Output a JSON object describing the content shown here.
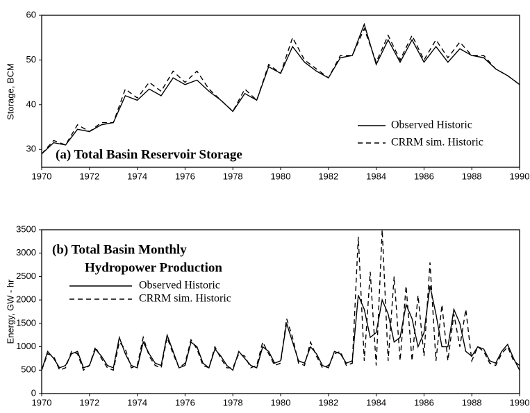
{
  "chart_data": [
    {
      "type": "line",
      "title": [
        "(a) Total Basin Reservoir Storage"
      ],
      "ylabel": "Storage, BCM",
      "xlim": [
        1970,
        1990
      ],
      "xticks": [
        1970,
        1972,
        1974,
        1976,
        1978,
        1980,
        1982,
        1984,
        1986,
        1988,
        1990
      ],
      "ylim": [
        26,
        60
      ],
      "yticks": [
        30,
        40,
        50,
        60
      ],
      "x": [
        1970,
        1970.5,
        1971,
        1971.5,
        1972,
        1972.5,
        1973,
        1973.5,
        1974,
        1974.5,
        1975,
        1975.5,
        1976,
        1976.5,
        1977,
        1977.5,
        1978,
        1978.5,
        1979,
        1979.5,
        1980,
        1980.5,
        1981,
        1981.5,
        1982,
        1982.5,
        1983,
        1983.5,
        1984,
        1984.5,
        1985,
        1985.5,
        1986,
        1986.5,
        1987,
        1987.5,
        1988,
        1988.5,
        1989,
        1989.5,
        1990
      ],
      "series": [
        {
          "name": "Observed Historic",
          "color": "#000000",
          "style": "solid",
          "values": [
            29,
            31.5,
            31,
            34.5,
            34,
            35.5,
            36,
            42,
            41,
            43.5,
            42,
            46,
            44.5,
            45.5,
            43,
            41,
            38.5,
            42.5,
            41,
            48.5,
            47,
            53,
            49.5,
            47.5,
            46,
            50.5,
            51,
            58,
            49,
            54.5,
            49.5,
            54.5,
            49.5,
            53,
            49.5,
            52.5,
            51,
            50.5,
            48,
            46.5,
            44.5
          ]
        },
        {
          "name": "CRRM sim. Historic",
          "color": "#000000",
          "style": "dashed",
          "values": [
            29,
            32,
            31,
            35.5,
            34,
            36,
            36,
            43.5,
            41.5,
            45,
            43,
            47.5,
            45,
            47.5,
            43.5,
            41,
            38.5,
            43.5,
            41,
            49,
            47,
            55,
            50,
            48,
            46,
            51,
            51,
            57,
            49.5,
            55.5,
            50,
            55.5,
            50,
            54.5,
            50.5,
            54,
            51,
            51,
            48,
            46.5,
            44.5
          ]
        }
      ]
    },
    {
      "type": "line",
      "title": [
        "(b) Total Basin Monthly",
        "Hydropower Production"
      ],
      "ylabel": "Energy, GW - hr",
      "xlim": [
        1970,
        1990
      ],
      "xticks": [
        1970,
        1972,
        1974,
        1976,
        1978,
        1980,
        1982,
        1984,
        1986,
        1988,
        1990
      ],
      "ylim": [
        0,
        3500
      ],
      "yticks": [
        0,
        500,
        1000,
        1500,
        2000,
        2500,
        3000,
        3500
      ],
      "x": [
        1970,
        1970.25,
        1970.5,
        1970.75,
        1971,
        1971.25,
        1971.5,
        1971.75,
        1972,
        1972.25,
        1972.5,
        1972.75,
        1973,
        1973.25,
        1973.5,
        1973.75,
        1974,
        1974.25,
        1974.5,
        1974.75,
        1975,
        1975.25,
        1975.5,
        1975.75,
        1976,
        1976.25,
        1976.5,
        1976.75,
        1977,
        1977.25,
        1977.5,
        1977.75,
        1978,
        1978.25,
        1978.5,
        1978.75,
        1979,
        1979.25,
        1979.5,
        1979.75,
        1980,
        1980.25,
        1980.5,
        1980.75,
        1981,
        1981.25,
        1981.5,
        1981.75,
        1982,
        1982.25,
        1982.5,
        1982.75,
        1983,
        1983.25,
        1983.5,
        1983.75,
        1984,
        1984.25,
        1984.5,
        1984.75,
        1985,
        1985.25,
        1985.5,
        1985.75,
        1986,
        1986.25,
        1986.5,
        1986.75,
        1987,
        1987.25,
        1987.5,
        1987.75,
        1988,
        1988.25,
        1988.5,
        1988.75,
        1989,
        1989.25,
        1989.5,
        1989.75,
        1990
      ],
      "series": [
        {
          "name": "Observed Historic",
          "color": "#000000",
          "style": "solid",
          "values": [
            500,
            900,
            750,
            550,
            600,
            850,
            900,
            550,
            600,
            950,
            800,
            600,
            550,
            1200,
            850,
            600,
            550,
            1100,
            850,
            650,
            600,
            1250,
            900,
            550,
            600,
            1100,
            1000,
            650,
            550,
            950,
            800,
            600,
            500,
            900,
            750,
            600,
            550,
            1000,
            900,
            650,
            700,
            1500,
            1100,
            700,
            650,
            1000,
            850,
            600,
            550,
            900,
            850,
            650,
            700,
            2100,
            1800,
            1200,
            1300,
            2000,
            1700,
            1100,
            1200,
            1900,
            1600,
            1000,
            1300,
            2300,
            1700,
            1000,
            1000,
            1800,
            1500,
            900,
            800,
            1000,
            950,
            700,
            650,
            900,
            1050,
            750,
            500
          ]
        },
        {
          "name": "CRRM sim. Historic",
          "color": "#000000",
          "style": "dashed",
          "values": [
            500,
            850,
            800,
            500,
            550,
            900,
            850,
            500,
            600,
            1000,
            750,
            550,
            500,
            1100,
            950,
            550,
            600,
            1200,
            800,
            600,
            550,
            1200,
            850,
            550,
            650,
            1150,
            950,
            600,
            550,
            1000,
            750,
            550,
            550,
            850,
            800,
            550,
            600,
            1100,
            850,
            600,
            650,
            1600,
            1200,
            650,
            600,
            1100,
            800,
            550,
            600,
            850,
            900,
            600,
            650,
            3350,
            700,
            2600,
            600,
            3500,
            700,
            2500,
            700,
            2300,
            700,
            2100,
            800,
            2800,
            700,
            1900,
            700,
            1700,
            1000,
            1800,
            700,
            1000,
            900,
            650,
            600,
            850,
            1000,
            700,
            600
          ]
        }
      ]
    }
  ]
}
